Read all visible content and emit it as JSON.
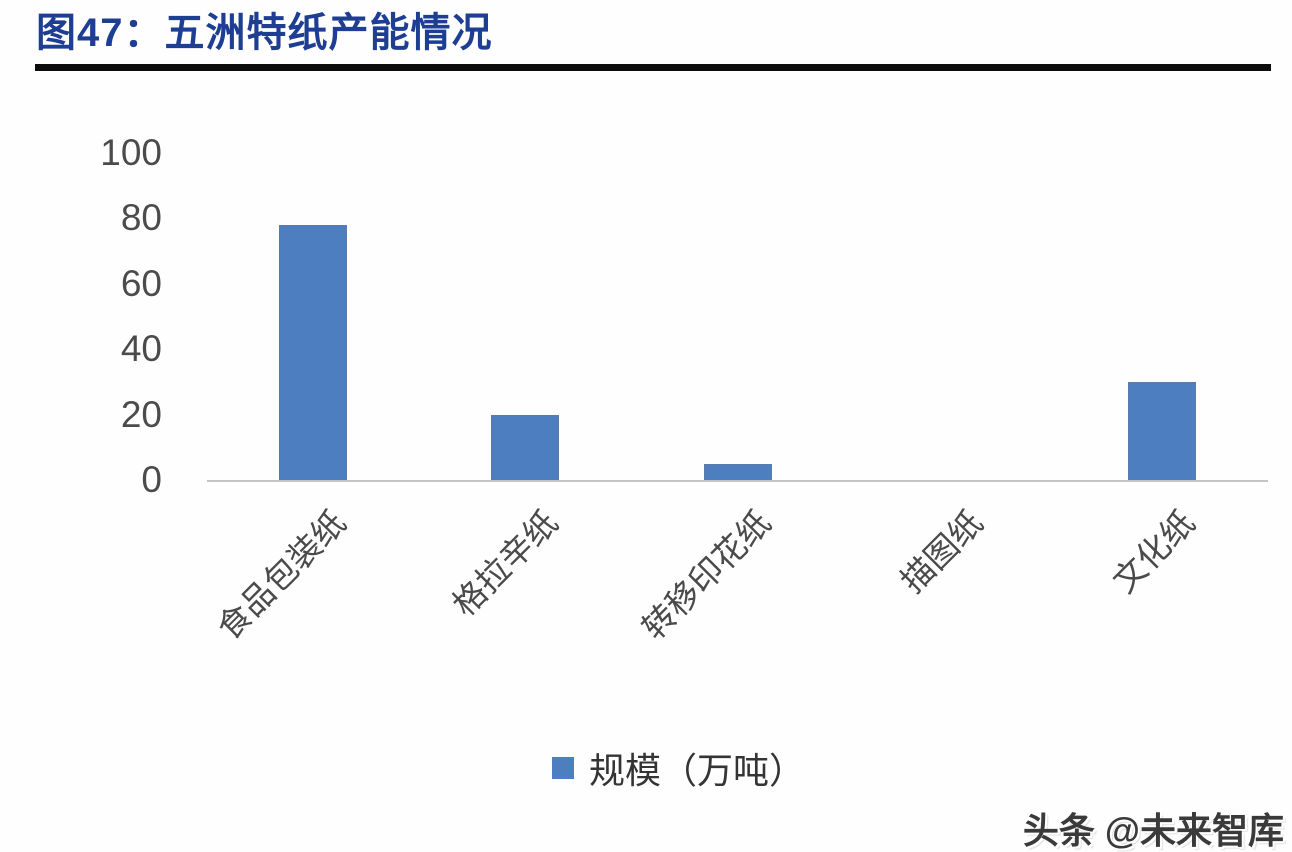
{
  "header": {
    "title": "图47：五洲特纸产能情况"
  },
  "chart_data": {
    "type": "bar",
    "title": "图47：五洲特纸产能情况",
    "categories": [
      "食品包装纸",
      "格拉辛纸",
      "转移印花纸",
      "描图纸",
      "文化纸"
    ],
    "series": [
      {
        "name": "规模（万吨）",
        "values": [
          78,
          20,
          5,
          0,
          30
        ]
      }
    ],
    "xlabel": "",
    "ylabel": "",
    "ylim": [
      0,
      100
    ],
    "yticks": [
      100,
      80,
      60,
      40,
      20,
      0
    ],
    "grid": false,
    "legend_position": "bottom",
    "bar_color": "#4d7ebf",
    "x_tick_rotation_deg": -45
  },
  "legend": {
    "swatch_color": "#4d7ebf",
    "label": "规模（万吨）"
  },
  "watermark": {
    "text": "头条 @未来智库"
  },
  "colors": {
    "title_text": "#1e3e94",
    "title_rule": "#0c0c0c",
    "bar": "#4d7ebf",
    "axis_line": "#c4c4c4",
    "tick_text": "#4b4b4b",
    "category_text": "#4a4a4a",
    "watermark_text": "#3a3a3a"
  }
}
